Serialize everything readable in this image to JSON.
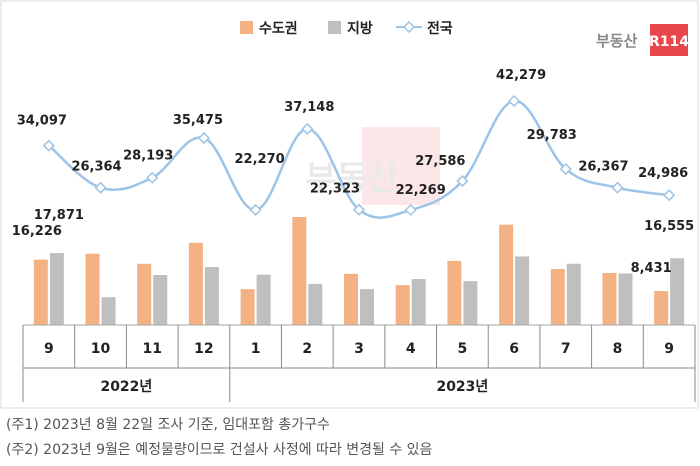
{
  "brand": {
    "name": "부동산",
    "badge": "R114"
  },
  "notes": [
    "(주1) 2023년 8월 22일 조사 기준, 임대포함 총가구수",
    "(주2) 2023년 9월은 예정물량이므로 건설사 사정에 따라 변경될 수 있음"
  ],
  "chart_data": {
    "type": "bar",
    "legend_position": "top-center",
    "categories": [
      "9",
      "10",
      "11",
      "12",
      "1",
      "2",
      "3",
      "4",
      "5",
      "6",
      "7",
      "8",
      "9"
    ],
    "year_groups": [
      {
        "label": "2022년",
        "span": [
          0,
          3
        ]
      },
      {
        "label": "2023년",
        "span": [
          4,
          12
        ]
      }
    ],
    "series": [
      {
        "name": "수도권",
        "kind": "bar",
        "color": "#F4B183",
        "values": [
          16226,
          17700,
          15200,
          20400,
          8900,
          26800,
          12700,
          9900,
          15900,
          24900,
          13900,
          12900,
          8431
        ],
        "labels": {
          "0": "16,226",
          "12": "8,431"
        }
      },
      {
        "name": "지방",
        "kind": "bar",
        "color": "#BFBFBF",
        "values": [
          17871,
          6900,
          12400,
          14400,
          12500,
          10200,
          8900,
          11400,
          10900,
          17000,
          15200,
          12800,
          16555
        ],
        "labels": {
          "0": "17,871",
          "12": "16,555"
        }
      },
      {
        "name": "전국",
        "kind": "line",
        "color": "#9DC3E6",
        "values": [
          34097,
          26364,
          28193,
          35475,
          22270,
          37148,
          22323,
          22269,
          27586,
          42279,
          29783,
          26367,
          24986
        ],
        "labels": [
          "34,097",
          "26,364",
          "28,193",
          "35,475",
          "22,270",
          "37,148",
          "22,323",
          "22,269",
          "27,586",
          "42,279",
          "29,783",
          "26,367",
          "24,986"
        ]
      }
    ],
    "colors": {
      "bar_kr_capital": "#F4B183",
      "bar_regional": "#BFBFBF",
      "line_nation": "#9DC3E6",
      "badge": "#E8464C"
    }
  }
}
